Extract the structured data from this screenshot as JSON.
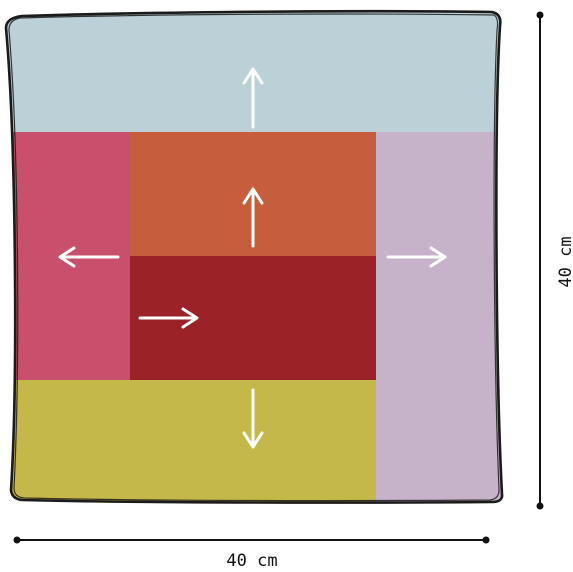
{
  "dimensions": {
    "width_label": "40 cm",
    "height_label": "40 cm"
  },
  "colors": {
    "outline": "#1b1b1b",
    "top_panel": "#bcd1d7",
    "left_panel": "#c9506c",
    "center_top_panel": "#c65d3c",
    "center_panel": "#9b2226",
    "right_panel": "#c7b3c9",
    "bottom_panel": "#c4b84a",
    "arrow": "#ffffff",
    "dimension_line": "#111111"
  },
  "panels": [
    {
      "id": "top",
      "arrow": "up"
    },
    {
      "id": "left",
      "arrow": "left"
    },
    {
      "id": "center-top",
      "arrow": "up"
    },
    {
      "id": "center",
      "arrow": "right"
    },
    {
      "id": "right",
      "arrow": "right"
    },
    {
      "id": "bottom",
      "arrow": "down"
    }
  ]
}
